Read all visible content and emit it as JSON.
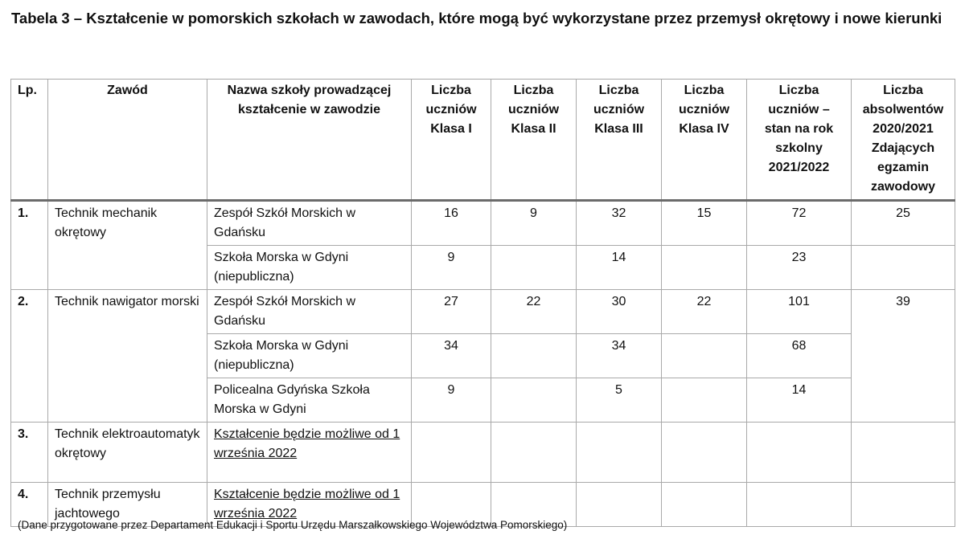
{
  "title": "Tabela 3 – Kształcenie w pomorskich szkołach w zawodach, które mogą być wykorzystane przez przemysł okrętowy i nowe kierunki",
  "headers": [
    "Lp.",
    "Zawód",
    "Nazwa szkoły prowadzącej kształcenie w zawodzie",
    "Liczba uczniów Klasa I",
    "Liczba uczniów Klasa II",
    "Liczba uczniów Klasa III",
    "Liczba uczniów Klasa IV",
    "Liczba uczniów – stan na rok szkolny 2021/2022",
    "Liczba absolwentów 2020/2021 Zdających egzamin zawodowy"
  ],
  "rows": [
    {
      "lp": "1.",
      "zawod": "Technik mechanik okrętowy",
      "absolwenci": "25",
      "schools": [
        {
          "name": "Zespół Szkół Morskich w Gdańsku",
          "k1": "16",
          "k2": "9",
          "k3": "32",
          "k4": "15",
          "total": "72"
        },
        {
          "name": "Szkoła Morska w Gdyni (niepubliczna)",
          "k1": "9",
          "k2": "",
          "k3": "14",
          "k4": "",
          "total": "23"
        }
      ]
    },
    {
      "lp": "2.",
      "zawod": "Technik nawigator morski",
      "absolwenci": "39",
      "schools": [
        {
          "name": "Zespół Szkół Morskich w Gdańsku",
          "k1": "27",
          "k2": "22",
          "k3": "30",
          "k4": "22",
          "total": "101"
        },
        {
          "name": "Szkoła Morska w Gdyni (niepubliczna)",
          "k1": "34",
          "k2": "",
          "k3": "34",
          "k4": "",
          "total": "68"
        },
        {
          "name": "Policealna Gdyńska Szkoła Morska w Gdyni",
          "k1": "9",
          "k2": "",
          "k3": "5",
          "k4": "",
          "total": "14"
        }
      ]
    },
    {
      "lp": "3.",
      "zawod": "Technik elektroautomatyk okrętowy",
      "note": "Kształcenie będzie możliwe od 1 września 2022"
    },
    {
      "lp": "4.",
      "zawod": "Technik przemysłu jachtowego",
      "note": "Kształcenie będzie możliwe od 1 września 2022"
    }
  ],
  "footnote": "(Dane przygotowane przez Departament Edukacji i Sportu Urzędu Marszałkowskiego Województwa Pomorskiego)"
}
